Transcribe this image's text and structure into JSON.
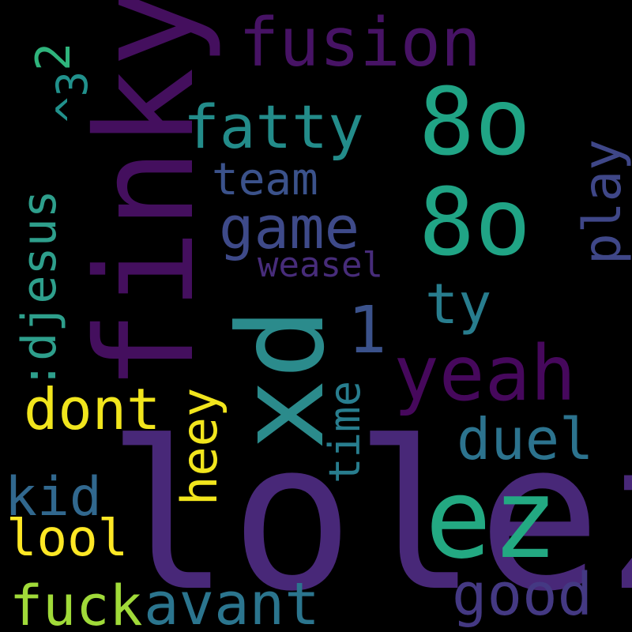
{
  "words": [
    {
      "text": "lolez",
      "color": "#482878"
    },
    {
      "text": "finky",
      "color": "#440f5e"
    },
    {
      "text": "xd",
      "color": "#2b8b8c"
    },
    {
      "text": "ez",
      "color": "#23a982"
    },
    {
      "text": "fusion",
      "color": "#471365"
    },
    {
      "text": "8o",
      "color": "#20a485"
    },
    {
      "text": "8o",
      "color": "#20a485"
    },
    {
      "text": "fatty",
      "color": "#238c8a"
    },
    {
      "text": "game",
      "color": "#3e4a89"
    },
    {
      "text": "team",
      "color": "#3b528b"
    },
    {
      "text": "weasel",
      "color": "#472c7a"
    },
    {
      "text": "yeah",
      "color": "#46085c"
    },
    {
      "text": "ty",
      "color": "#287d8e"
    },
    {
      "text": "1",
      "color": "#3b528b"
    },
    {
      "text": "duel",
      "color": "#2c738e"
    },
    {
      "text": "time",
      "color": "#287d8e"
    },
    {
      "text": "heey",
      "color": "#f1e51d"
    },
    {
      "text": "dont",
      "color": "#f1e51d"
    },
    {
      "text": ":djesus",
      "color": "#2e9f8c"
    },
    {
      "text": "^3",
      "color": "#21918c"
    },
    {
      "text": "2",
      "color": "#2fb47c"
    },
    {
      "text": "play",
      "color": "#3f4788"
    },
    {
      "text": "kid",
      "color": "#31688e"
    },
    {
      "text": "lool",
      "color": "#fde725"
    },
    {
      "text": "fuck",
      "color": "#a0da39"
    },
    {
      "text": "avant",
      "color": "#2b758e"
    },
    {
      "text": "good",
      "color": "#443983"
    }
  ]
}
